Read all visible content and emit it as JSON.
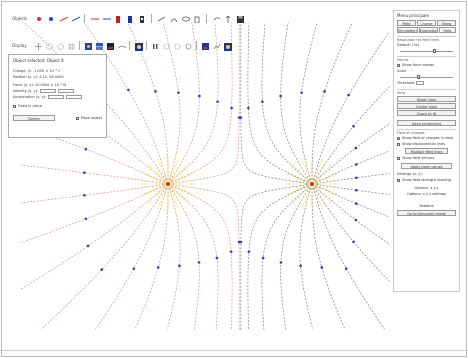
{
  "toolbar1": {
    "label": "Objects",
    "icons": [
      "positive-charge-icon",
      "negative-charge-icon",
      "add-line-icon",
      "add-line-icon",
      "add-wire-icon",
      "add-wire-icon",
      "magnet-icon",
      "magnet-icon",
      "field-icon",
      "field-icon",
      "meter-icon",
      "meter-icon",
      "delete-icon",
      "undo-icon",
      "redo-icon",
      "save-icon"
    ]
  },
  "toolbar2": {
    "label": "Display",
    "icons": [
      "field-lines-icon",
      "equipotential-icon",
      "vectors-icon",
      "grid-icon",
      "color-map-icon",
      "potential-icon",
      "voltage-icon",
      "density-icon",
      "pause-icon",
      "reset-icon",
      "zoom-icon",
      "color-icon",
      "stop-icon",
      "particles-icon"
    ]
  },
  "selected_panel": {
    "title": "Object selected: Object 8",
    "charge_line": "Charge, Q: -1.000 × 10⁻⁹ C",
    "pos_line": "Position (x, y): 4.11, 26.0000",
    "force_line": "Force (x, y): 10.0000 × 10⁻⁹ N",
    "vel_line": "Velocity (x, y):",
    "acc_line": "Acceleration (x, y):",
    "fixed_label": "Fixed in place",
    "delete_label": "Delete",
    "move_label": "Move object"
  },
  "sidebar": {
    "title": "Menu principale",
    "tabs": [
      "Field",
      "Charge",
      "Show"
    ],
    "subtabs": [
      "Simulation",
      "Examples",
      "Help"
    ],
    "section_resolution": "Resolution for field lines",
    "res_label": "Default: (3x)",
    "res_level": 0.65,
    "section_forces": "Forces",
    "forces_show": "Show force arrows",
    "scale_label": "Scale",
    "scale_level": 0.35,
    "threshold_label": "Threshold",
    "section_view": "View",
    "btn_reset_view": "Reset view",
    "btn_center": "Center view",
    "btn_zoom_fit": "Zoom to fit",
    "btn_screenshot": "Save screenshot",
    "section_field": "Field of charges",
    "opt_show_potential": "Show field of charges in view",
    "opt_show_equip": "Show equipotential lines",
    "btn_multiple": "Multiple field lines",
    "opt_vectors": "Show field vectors",
    "btn_apply_colors": "Apply color values",
    "label_settings_a": "Settings (x, y):",
    "opt_shading": "Show field strength shading",
    "label_options_a": "Options: x y z",
    "label_options_b": "Options: x y z settings",
    "label_about": "Readme",
    "btn_go_fullscreen": "Go to fullscreen mode"
  },
  "colors": {
    "positive": "#d03030",
    "negative": "#3040c0",
    "line_neg": "#5f6f90",
    "line_pos": "#d08070",
    "glow": "#ffe870"
  }
}
